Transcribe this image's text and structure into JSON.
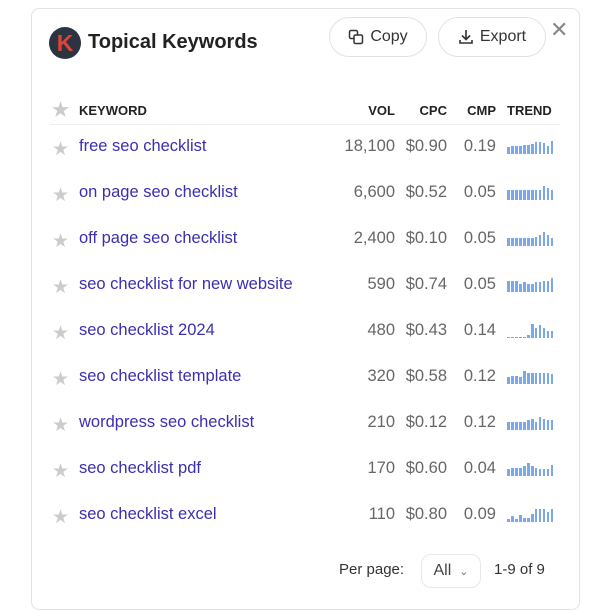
{
  "header": {
    "logo_letter": "K",
    "title": "Topical Keywords",
    "copy_label": "Copy",
    "export_label": "Export",
    "close_icon": "close-icon"
  },
  "columns": {
    "keyword": "KEYWORD",
    "vol": "VOL",
    "cpc": "CPC",
    "cmp": "CMP",
    "trend": "TREND"
  },
  "accent": "#3b2fb0",
  "trend_color": "#7aa8ec",
  "rows": [
    {
      "keyword": "free seo checklist",
      "vol": "18,100",
      "cpc": "$0.90",
      "cmp": "0.19",
      "trend": [
        0.5,
        0.55,
        0.6,
        0.6,
        0.65,
        0.65,
        0.7,
        0.85,
        0.85,
        0.8,
        0.6,
        0.9
      ]
    },
    {
      "keyword": "on page seo checklist",
      "vol": "6,600",
      "cpc": "$0.52",
      "cmp": "0.05",
      "trend": [
        0.7,
        0.7,
        0.7,
        0.7,
        0.7,
        0.7,
        0.7,
        0.7,
        0.7,
        1.0,
        0.85,
        0.7
      ]
    },
    {
      "keyword": "off page seo checklist",
      "vol": "2,400",
      "cpc": "$0.10",
      "cmp": "0.05",
      "trend": [
        0.6,
        0.6,
        0.6,
        0.6,
        0.6,
        0.6,
        0.6,
        0.65,
        0.8,
        1.0,
        0.8,
        0.6
      ]
    },
    {
      "keyword": "seo checklist for new website",
      "vol": "590",
      "cpc": "$0.74",
      "cmp": "0.05",
      "trend": [
        0.8,
        0.8,
        0.8,
        0.6,
        0.7,
        0.6,
        0.6,
        0.7,
        0.7,
        0.8,
        0.8,
        1.0
      ]
    },
    {
      "keyword": "seo checklist 2024",
      "vol": "480",
      "cpc": "$0.43",
      "cmp": "0.14",
      "trend": [
        0.05,
        0.05,
        0.05,
        0.05,
        0.05,
        0.2,
        1.0,
        0.7,
        0.9,
        0.7,
        0.5,
        0.5
      ]
    },
    {
      "keyword": "seo checklist template",
      "vol": "320",
      "cpc": "$0.58",
      "cmp": "0.12",
      "trend": [
        0.5,
        0.6,
        0.6,
        0.5,
        0.9,
        0.8,
        0.8,
        0.8,
        0.8,
        0.8,
        0.8,
        0.7
      ]
    },
    {
      "keyword": "wordpress seo checklist",
      "vol": "210",
      "cpc": "$0.12",
      "cmp": "0.12",
      "trend": [
        0.6,
        0.6,
        0.6,
        0.6,
        0.6,
        0.7,
        0.8,
        0.6,
        0.9,
        0.8,
        0.7,
        0.7
      ]
    },
    {
      "keyword": "seo checklist pdf",
      "vol": "170",
      "cpc": "$0.60",
      "cmp": "0.04",
      "trend": [
        0.5,
        0.6,
        0.6,
        0.6,
        0.7,
        0.9,
        0.7,
        0.6,
        0.5,
        0.5,
        0.5,
        0.8
      ]
    },
    {
      "keyword": "seo checklist excel",
      "vol": "110",
      "cpc": "$0.80",
      "cmp": "0.09",
      "trend": [
        0.2,
        0.4,
        0.2,
        0.5,
        0.3,
        0.3,
        0.6,
        0.9,
        0.9,
        0.9,
        0.7,
        0.9
      ]
    }
  ],
  "footer": {
    "per_page_label": "Per page:",
    "per_page_value": "All",
    "range": "1-9 of 9"
  }
}
